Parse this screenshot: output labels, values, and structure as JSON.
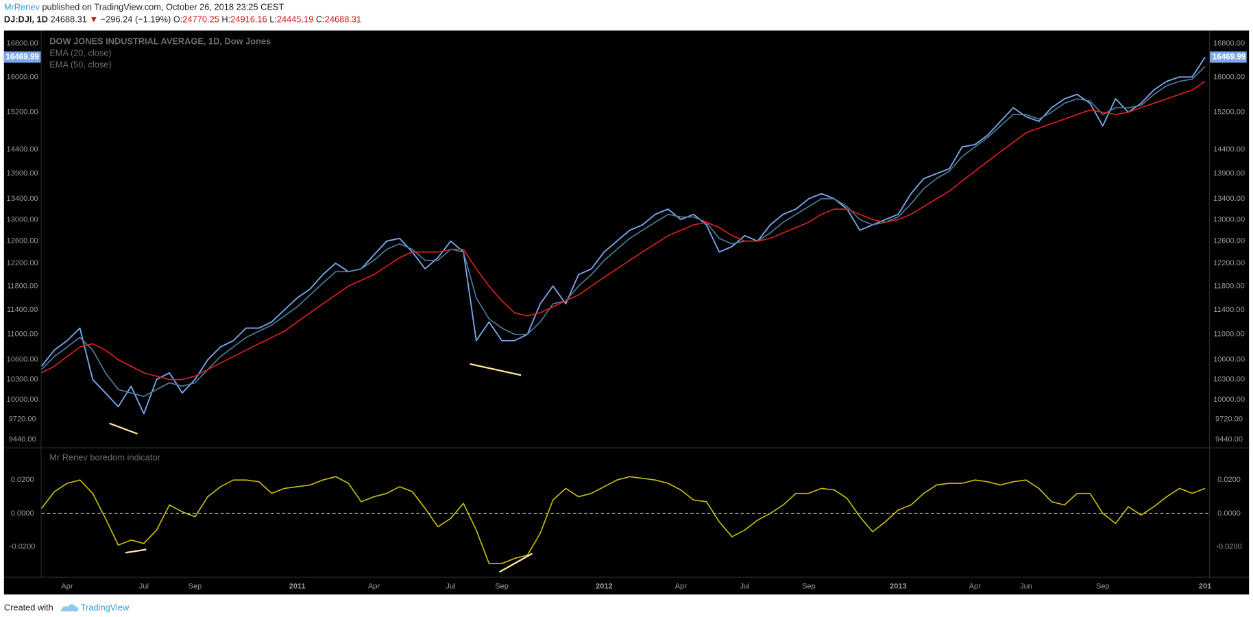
{
  "header": {
    "author": "MrRenev",
    "published": "published on TradingView.com, October 26, 2018 23:25 CEST",
    "symbol": "DJ:DJI, 1D",
    "last": "24688.31",
    "arrow": "▼",
    "change": "−296.24 (−1.19%)",
    "ohlc": [
      {
        "key": "O:",
        "value": "24770.25"
      },
      {
        "key": "H:",
        "value": "24916.16"
      },
      {
        "key": "L:",
        "value": "24445.19"
      },
      {
        "key": "C:",
        "value": "24688.31"
      }
    ]
  },
  "footer": {
    "created": "Created with",
    "brand": "TradingView"
  },
  "chart_data": [
    {
      "type": "line",
      "log_scale": true,
      "ylim": [
        9340,
        17080
      ],
      "last_price": 16469.99,
      "yticks": [
        {
          "value": 16800,
          "label": "16800.00"
        },
        {
          "value": 16000,
          "label": "16000.00"
        },
        {
          "value": 15200,
          "label": "15200.00"
        },
        {
          "value": 14400,
          "label": "14400.00"
        },
        {
          "value": 13900,
          "label": "13900.00"
        },
        {
          "value": 13400,
          "label": "13400.00"
        },
        {
          "value": 13000,
          "label": "13000.00"
        },
        {
          "value": 12600,
          "label": "12600.00"
        },
        {
          "value": 12200,
          "label": "12200.00"
        },
        {
          "value": 11800,
          "label": "11800.00"
        },
        {
          "value": 11400,
          "label": "11400.00"
        },
        {
          "value": 11000,
          "label": "11000.00"
        },
        {
          "value": 10600,
          "label": "10600.00"
        },
        {
          "value": 10300,
          "label": "10300.00"
        },
        {
          "value": 10000,
          "label": "10000.00"
        },
        {
          "value": 9720,
          "label": "9720.00"
        },
        {
          "value": 9440,
          "label": "9440.00"
        }
      ],
      "series": [
        {
          "name": "DOW JONES INDUSTRIAL AVERAGE, 1D, Dow Jones",
          "color": "#7ba7ec",
          "values": [
            10500,
            10750,
            10900,
            11100,
            10300,
            10100,
            9900,
            10200,
            9800,
            10300,
            10400,
            10100,
            10300,
            10600,
            10800,
            10900,
            11100,
            11100,
            11200,
            11400,
            11600,
            11750,
            12000,
            12200,
            12050,
            12100,
            12350,
            12600,
            12650,
            12400,
            12100,
            12300,
            12600,
            12400,
            10900,
            11200,
            10900,
            10900,
            11000,
            11500,
            11800,
            11500,
            12000,
            12100,
            12400,
            12600,
            12800,
            12900,
            13100,
            13200,
            13000,
            13100,
            12900,
            12400,
            12500,
            12700,
            12600,
            12900,
            13100,
            13200,
            13400,
            13500,
            13400,
            13200,
            12800,
            12900,
            13000,
            13100,
            13500,
            13800,
            13900,
            14000,
            14450,
            14500,
            14700,
            15000,
            15300,
            15100,
            15000,
            15300,
            15500,
            15600,
            15400,
            14900,
            15500,
            15200,
            15400,
            15700,
            15900,
            16000,
            16000,
            16470
          ]
        },
        {
          "name": "EMA (20, close)",
          "color": "#4f7f9c",
          "values": [
            10450,
            10650,
            10800,
            10950,
            10750,
            10400,
            10150,
            10100,
            10050,
            10150,
            10250,
            10200,
            10250,
            10450,
            10650,
            10800,
            10950,
            11050,
            11150,
            11300,
            11450,
            11650,
            11850,
            12050,
            12050,
            12100,
            12250,
            12450,
            12550,
            12450,
            12250,
            12250,
            12450,
            12400,
            11600,
            11250,
            11100,
            11000,
            11000,
            11200,
            11500,
            11550,
            11800,
            12000,
            12250,
            12450,
            12650,
            12800,
            12950,
            13100,
            13050,
            13050,
            12950,
            12650,
            12550,
            12600,
            12600,
            12750,
            12950,
            13100,
            13250,
            13400,
            13400,
            13250,
            13000,
            12900,
            12950,
            13050,
            13300,
            13600,
            13800,
            13950,
            14250,
            14450,
            14650,
            14900,
            15150,
            15150,
            15050,
            15200,
            15400,
            15500,
            15450,
            15150,
            15300,
            15300,
            15350,
            15600,
            15800,
            15900,
            15950,
            16250
          ]
        },
        {
          "name": "EMA (50, close)",
          "color": "#e0221c",
          "values": [
            10400,
            10500,
            10650,
            10800,
            10850,
            10750,
            10600,
            10500,
            10400,
            10350,
            10300,
            10300,
            10350,
            10450,
            10550,
            10650,
            10750,
            10850,
            10950,
            11050,
            11200,
            11350,
            11500,
            11650,
            11800,
            11900,
            12000,
            12150,
            12300,
            12400,
            12400,
            12400,
            12450,
            12450,
            12100,
            11800,
            11550,
            11350,
            11300,
            11350,
            11450,
            11550,
            11650,
            11800,
            11950,
            12100,
            12250,
            12400,
            12550,
            12700,
            12800,
            12900,
            12950,
            12850,
            12700,
            12600,
            12600,
            12650,
            12750,
            12850,
            12950,
            13100,
            13200,
            13200,
            13100,
            13000,
            12950,
            13000,
            13100,
            13250,
            13400,
            13550,
            13750,
            13950,
            14150,
            14350,
            14550,
            14750,
            14850,
            14950,
            15050,
            15150,
            15250,
            15200,
            15150,
            15200,
            15300,
            15400,
            15500,
            15600,
            15700,
            15900
          ]
        }
      ]
    },
    {
      "type": "line",
      "ylim": [
        -0.038,
        0.039
      ],
      "hline": 0,
      "yticks": [
        {
          "value": 0.02,
          "label": "0.0200"
        },
        {
          "value": 0,
          "label": "0.0000"
        },
        {
          "value": -0.02,
          "label": "-0.0200"
        }
      ],
      "categories": [
        null,
        null,
        "Apr",
        null,
        null,
        null,
        null,
        null,
        "Jul",
        null,
        null,
        null,
        "Sep",
        null,
        null,
        null,
        null,
        null,
        null,
        null,
        "2011",
        null,
        null,
        null,
        null,
        null,
        "Apr",
        null,
        null,
        null,
        null,
        null,
        "Jul",
        null,
        null,
        null,
        "Sep",
        null,
        null,
        null,
        null,
        null,
        null,
        null,
        "2012",
        null,
        null,
        null,
        null,
        null,
        "Apr",
        null,
        null,
        null,
        null,
        "Jul",
        null,
        null,
        null,
        null,
        "Sep",
        null,
        null,
        null,
        null,
        null,
        null,
        "2013",
        null,
        null,
        null,
        null,
        null,
        "Apr",
        null,
        null,
        null,
        "Jun",
        null,
        null,
        null,
        null,
        null,
        "Sep",
        null,
        null,
        null,
        null,
        null,
        null,
        null,
        "201"
      ],
      "series": [
        {
          "name": "Mr Renev boredom indicator",
          "color": "#c9bf10",
          "values": [
            0.003,
            0.013,
            0.018,
            0.02,
            0.012,
            -0.003,
            -0.019,
            -0.016,
            -0.018,
            -0.01,
            0.005,
            0.001,
            -0.002,
            0.01,
            0.016,
            0.02,
            0.02,
            0.019,
            0.012,
            0.015,
            0.016,
            0.017,
            0.02,
            0.022,
            0.018,
            0.007,
            0.01,
            0.012,
            0.016,
            0.013,
            0.003,
            -0.008,
            -0.003,
            0.006,
            -0.01,
            -0.03,
            -0.03,
            -0.027,
            -0.025,
            -0.012,
            0.008,
            0.015,
            0.01,
            0.012,
            0.016,
            0.02,
            0.022,
            0.021,
            0.02,
            0.018,
            0.014,
            0.008,
            0.007,
            -0.005,
            -0.014,
            -0.01,
            -0.004,
            0.0,
            0.005,
            0.012,
            0.012,
            0.015,
            0.014,
            0.009,
            -0.002,
            -0.011,
            -0.005,
            0.002,
            0.005,
            0.012,
            0.017,
            0.018,
            0.018,
            0.02,
            0.019,
            0.017,
            0.019,
            0.02,
            0.015,
            0.007,
            0.005,
            0.012,
            0.012,
            0.0,
            -0.006,
            0.004,
            -0.001,
            0.004,
            0.01,
            0.015,
            0.012,
            0.015
          ]
        }
      ]
    }
  ]
}
